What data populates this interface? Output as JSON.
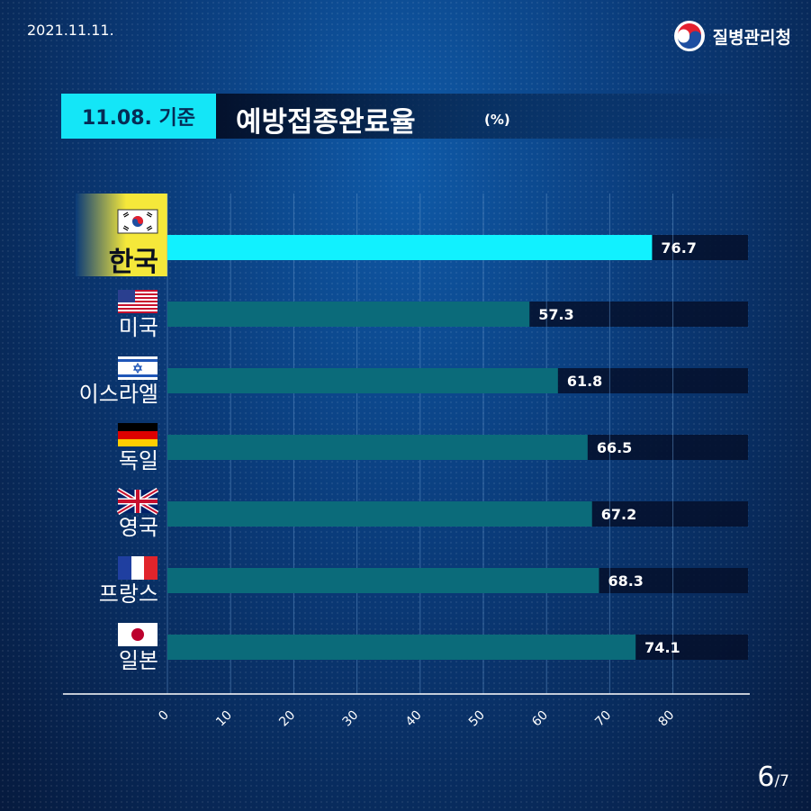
{
  "header": {
    "date": "2021.11.11.",
    "agency": "질병관리청"
  },
  "title": {
    "basis": "11.08. 기준",
    "main": "예방접종완료율",
    "unit": "(%)"
  },
  "pagination": {
    "current": "6",
    "total": "/7"
  },
  "colors": {
    "highlight_bar": "#11f1ff",
    "bar": "#0b6b7a",
    "track": "#050f2a",
    "title_box": "#14e6f7",
    "highlight_label_bg": "#f5e83a"
  },
  "chart_data": {
    "type": "bar",
    "orientation": "horizontal",
    "categories": [
      "한국",
      "미국",
      "이스라엘",
      "독일",
      "영국",
      "프랑스",
      "일본"
    ],
    "flags": [
      "korea-flag-icon",
      "usa-flag-icon",
      "israel-flag-icon",
      "germany-flag-icon",
      "uk-flag-icon",
      "france-flag-icon",
      "japan-flag-icon"
    ],
    "values": [
      76.7,
      57.3,
      61.8,
      66.5,
      67.2,
      68.3,
      74.1
    ],
    "value_labels": [
      "76.7",
      "57.3",
      "61.8",
      "66.5",
      "67.2",
      "68.3",
      "74.1"
    ],
    "highlight_index": 0,
    "xlim": [
      0,
      92
    ],
    "xticks": [
      0,
      10,
      20,
      30,
      40,
      50,
      60,
      70,
      80
    ],
    "xtick_labels": [
      "0",
      "10",
      "20",
      "30",
      "40",
      "50",
      "60",
      "70",
      "80"
    ],
    "grid": true
  }
}
